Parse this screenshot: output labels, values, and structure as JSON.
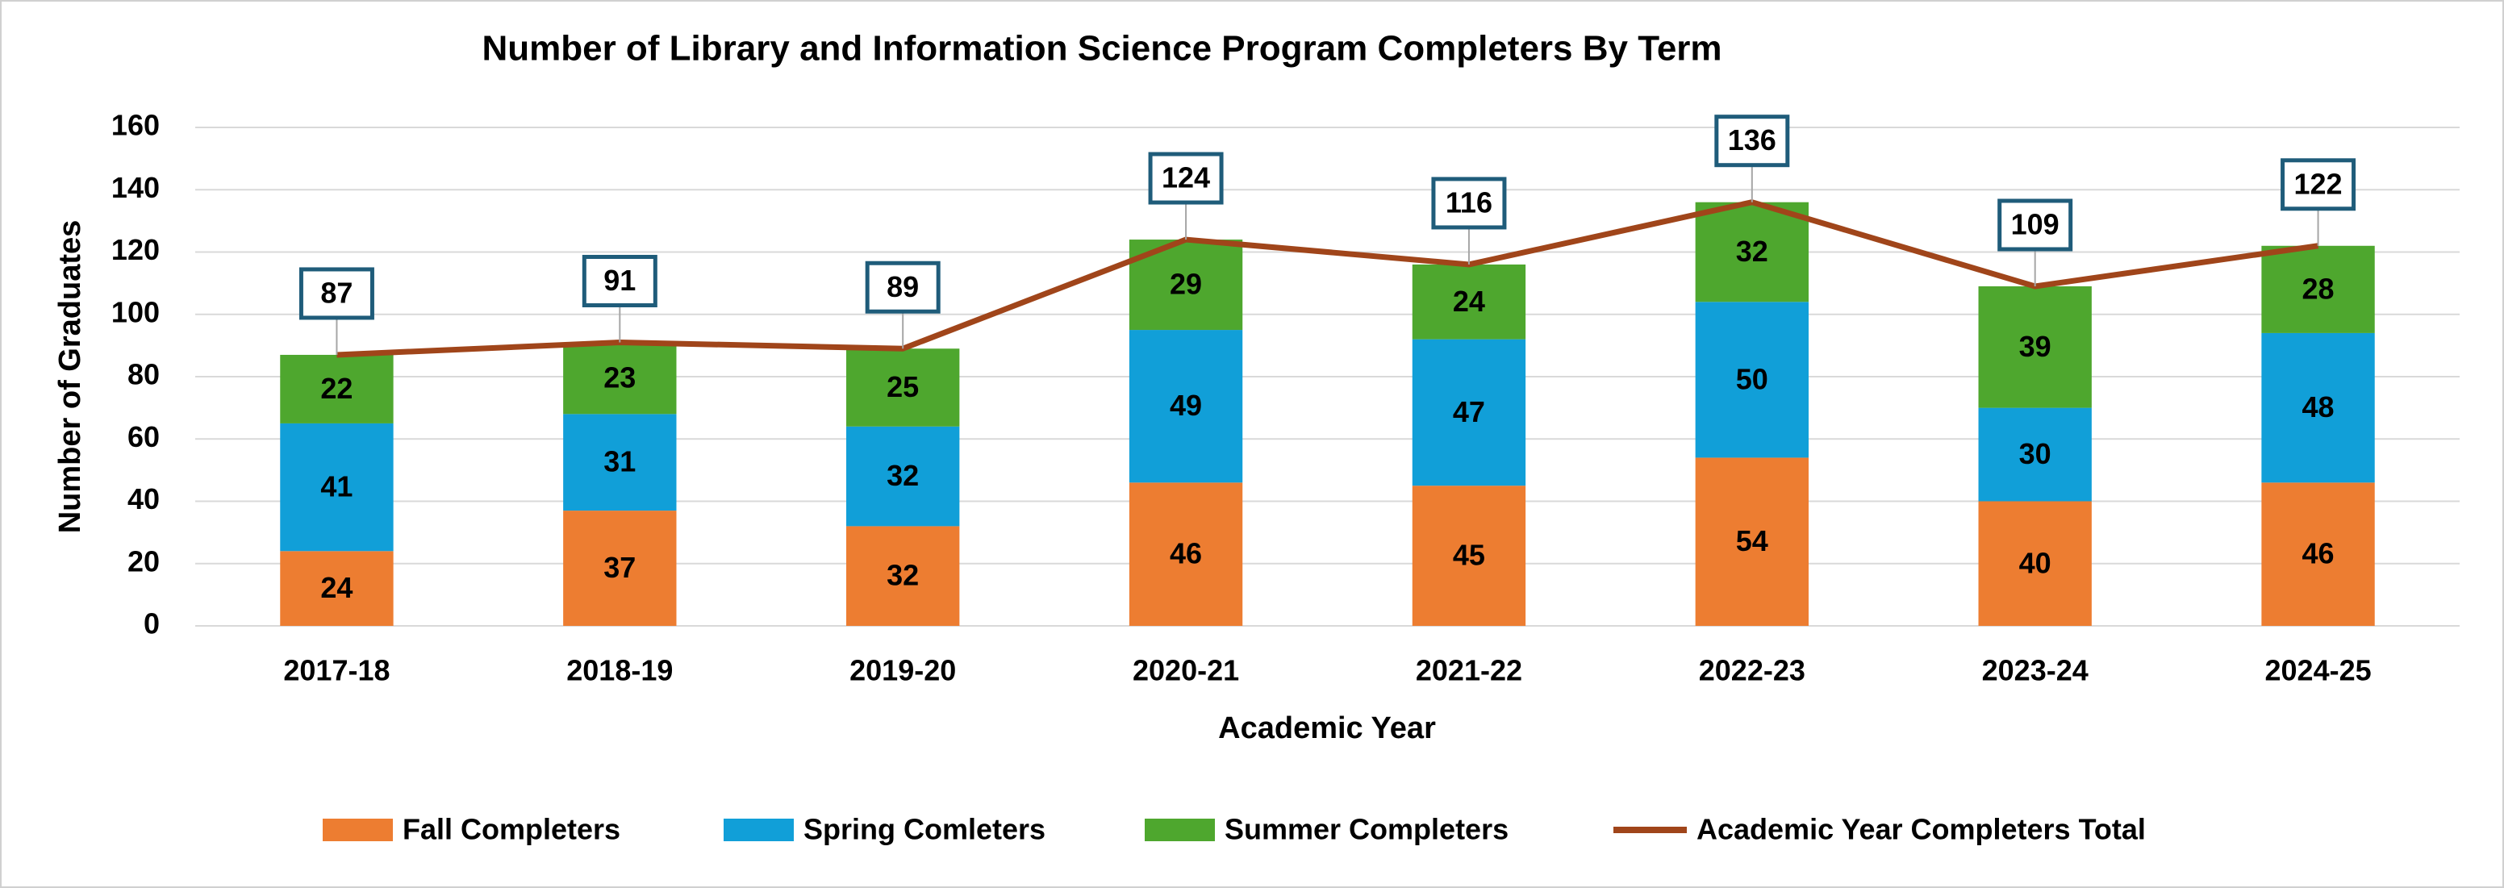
{
  "chart_data": {
    "type": "bar",
    "stacked": true,
    "title": "Number of Library and Information Science Program Completers By Term",
    "x_label": "Academic Year",
    "y_label": "Number of Graduates",
    "categories": [
      "2017-18",
      "2018-19",
      "2019-20",
      "2020-21",
      "2021-22",
      "2022-23",
      "2023-24",
      "2024-25"
    ],
    "series": [
      {
        "name": "Fall Completers",
        "color": "#ED7D31",
        "values": [
          24,
          37,
          32,
          46,
          45,
          54,
          40,
          46
        ]
      },
      {
        "name": "Spring Comleters",
        "color": "#119FD8",
        "values": [
          41,
          31,
          32,
          49,
          47,
          50,
          30,
          48
        ]
      },
      {
        "name": "Summer Completers",
        "color": "#4EA72E",
        "values": [
          22,
          23,
          25,
          29,
          24,
          32,
          39,
          28
        ]
      },
      {
        "name": "Academic Year Completers Total",
        "type": "line",
        "color": "#A0451A",
        "values": [
          87,
          91,
          89,
          124,
          116,
          136,
          109,
          122
        ]
      }
    ],
    "ylim": [
      0,
      160
    ],
    "yticks": [
      0,
      20,
      40,
      60,
      80,
      100,
      120,
      140,
      160
    ],
    "grid": true,
    "legend": "bottom"
  }
}
